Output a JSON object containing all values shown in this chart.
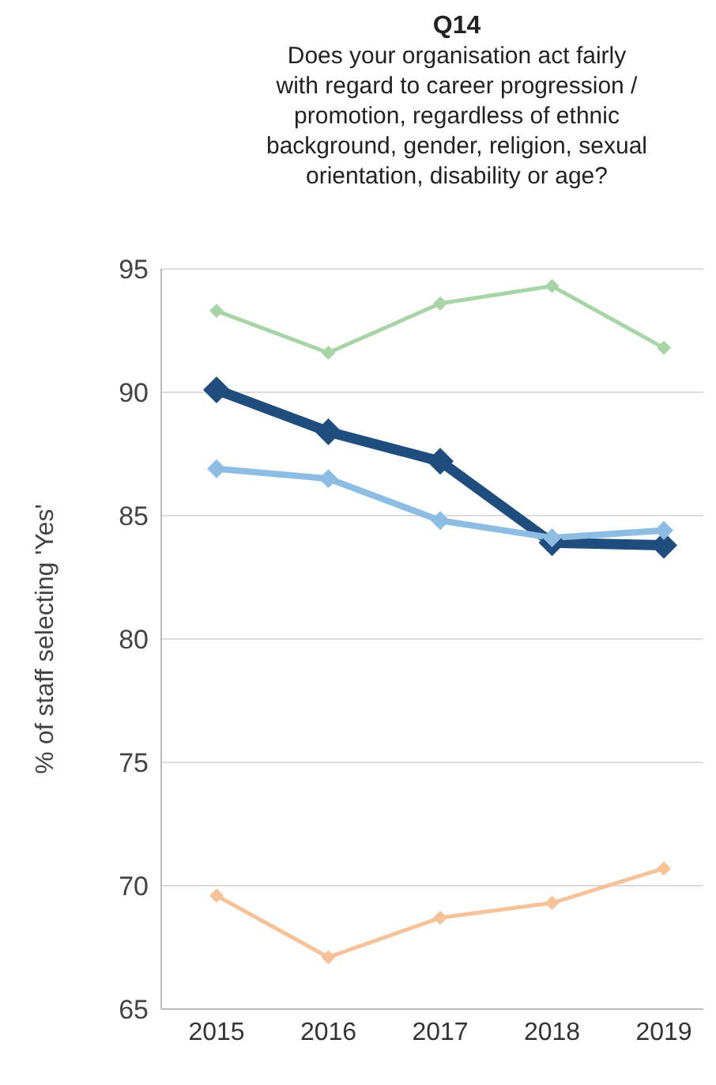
{
  "chart_data": {
    "type": "line",
    "title": "Q14",
    "subtitle": "Does your organisation act fairly with regard to career progression / promotion, regardless of ethnic background, gender, religion, sexual orientation, disability or age?",
    "ylabel": "% of staff selecting 'Yes'",
    "categories": [
      "2015",
      "2016",
      "2017",
      "2018",
      "2019"
    ],
    "series": [
      {
        "color": "#a8d5a8",
        "values": [
          93.3,
          91.6,
          93.6,
          94.3,
          91.8
        ]
      },
      {
        "color": "#1f4e7e",
        "values": [
          90.1,
          88.4,
          87.2,
          83.9,
          83.8
        ]
      },
      {
        "color": "#8dbde3",
        "values": [
          86.9,
          86.5,
          84.8,
          84.1,
          84.4
        ]
      },
      {
        "color": "#f5c29a",
        "values": [
          69.6,
          67.1,
          68.7,
          69.3,
          70.7
        ]
      }
    ],
    "ylim": [
      65,
      95
    ],
    "yticks": [
      65,
      70,
      75,
      80,
      85,
      90,
      95
    ],
    "grid": "y",
    "legend": false,
    "marker": "diamond",
    "line_style": "solid"
  }
}
